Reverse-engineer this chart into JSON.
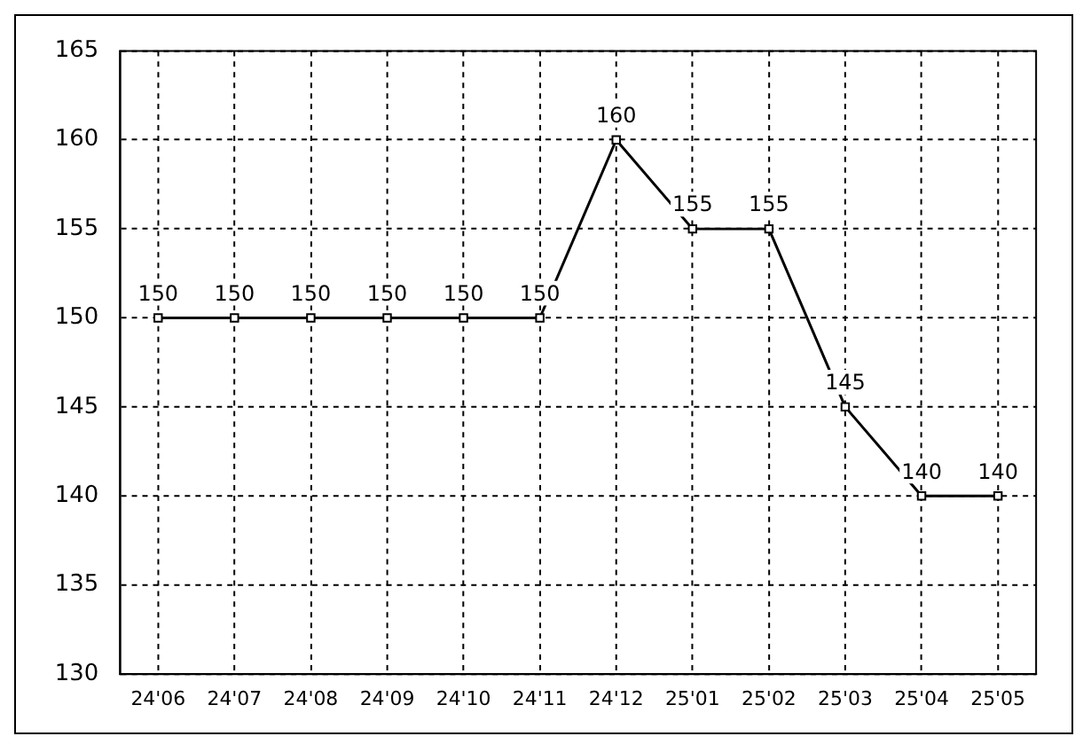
{
  "chart_data": {
    "type": "line",
    "categories": [
      "24'06",
      "24'07",
      "24'08",
      "24'09",
      "24'10",
      "24'11",
      "24'12",
      "25'01",
      "25'02",
      "25'03",
      "25'04",
      "25'05"
    ],
    "series": [
      {
        "color": "#000000",
        "values": [
          150,
          150,
          150,
          150,
          150,
          150,
          160,
          155,
          155,
          145,
          140,
          140
        ]
      }
    ],
    "ylim": [
      130,
      165
    ],
    "yticks": [
      130,
      135,
      140,
      145,
      150,
      155,
      160,
      165
    ],
    "grid": true,
    "legend": false,
    "marker": "square",
    "line_style": "solid",
    "data_labels": true
  }
}
